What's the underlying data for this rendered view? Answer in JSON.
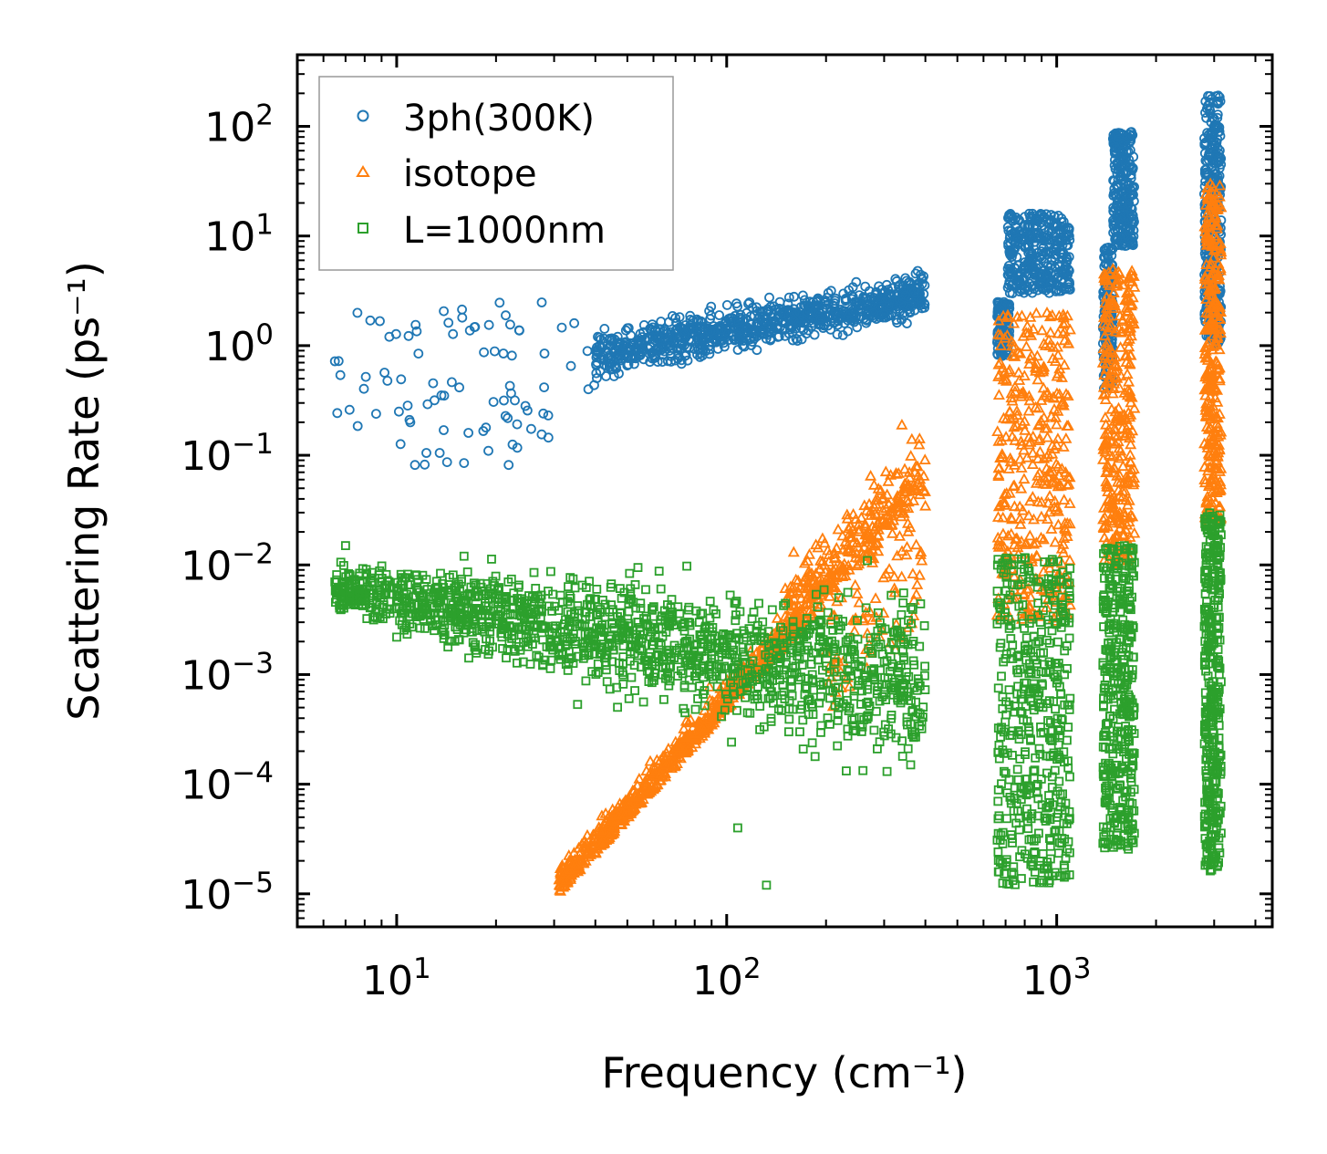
{
  "chart_data": {
    "type": "scatter",
    "xscale": "log",
    "yscale": "log",
    "xlim": [
      5,
      4500
    ],
    "ylim": [
      5e-06,
      450
    ],
    "xlabel": "Frequency (cm⁻¹)",
    "ylabel": "Scattering Rate (ps⁻¹)",
    "x_ticks": [
      {
        "base": "10",
        "exp": "1",
        "value": 10
      },
      {
        "base": "10",
        "exp": "2",
        "value": 100
      },
      {
        "base": "10",
        "exp": "3",
        "value": 1000
      }
    ],
    "y_ticks": [
      {
        "base": "10",
        "exp": "2",
        "value": 100
      },
      {
        "base": "10",
        "exp": "1",
        "value": 10
      },
      {
        "base": "10",
        "exp": "0",
        "value": 1
      },
      {
        "base": "10",
        "exp": "−1",
        "value": 0.1
      },
      {
        "base": "10",
        "exp": "−2",
        "value": 0.01
      },
      {
        "base": "10",
        "exp": "−3",
        "value": 0.001
      },
      {
        "base": "10",
        "exp": "−4",
        "value": 0.0001
      },
      {
        "base": "10",
        "exp": "−5",
        "value": 1e-05
      }
    ],
    "legend_position": "top-left",
    "series": [
      {
        "name": "3ph(300K)",
        "marker": "circle",
        "color": "#1f77b4",
        "description": "3-phonon scattering; trend rises from ~0.1-1 at low frequency to ~3-4 near 400, clusters near 700-1100 (1-15), 1400-1700 (0.3-90), 2800-3200 (0.3-200)",
        "bands": [
          {
            "x": [
              6.5,
              40
            ],
            "y": [
              0.08,
              2.5
            ],
            "count": 80,
            "trend": "flat"
          },
          {
            "x": [
              40,
              400
            ],
            "y_center_start": 0.8,
            "y_center_end": 3.0,
            "spread": 2.2,
            "count": 900
          },
          {
            "x": [
              660,
              720
            ],
            "y": [
              0.8,
              2.5
            ],
            "count": 120
          },
          {
            "x": [
              710,
              1100
            ],
            "y": [
              3,
              16
            ],
            "count": 350
          },
          {
            "x": [
              1380,
              1480
            ],
            "y": [
              0.4,
              8
            ],
            "count": 150
          },
          {
            "x": [
              1480,
              1720
            ],
            "y": [
              8,
              90
            ],
            "count": 250
          },
          {
            "x": [
              2800,
              3150
            ],
            "y": [
              1,
              200
            ],
            "count": 350
          }
        ],
        "sparse_points": [
          [
            6.5,
            0.72
          ],
          [
            7.2,
            0.26
          ],
          [
            11.5,
            1.35
          ],
          [
            11.0,
            0.2
          ],
          [
            12.3,
            0.105
          ],
          [
            13.5,
            0.105
          ],
          [
            16,
            0.085
          ],
          [
            15.8,
            1.8
          ],
          [
            16.5,
            0.16
          ]
        ]
      },
      {
        "name": "isotope",
        "marker": "triangle",
        "color": "#ff7f0e",
        "description": "isotope scattering; rises steeply from 1e-5 at 30 cm-1 to ~1e-3 near 100, ~1e-2 near 250, up to 0.1 near 350; clusters at 700-1100 (0.003-2), 1400-1700 (0.01-5), 2800-3200 (0.02-30)",
        "bands": [
          {
            "x": [
              31,
              400
            ],
            "law": "power",
            "y_at_31": 1e-05,
            "slope": 3.3,
            "spread": 2.5,
            "count": 1100
          },
          {
            "x": [
              660,
              1100
            ],
            "y": [
              0.003,
              2
            ],
            "count": 380
          },
          {
            "x": [
              1380,
              1720
            ],
            "y": [
              0.01,
              5
            ],
            "count": 320
          },
          {
            "x": [
              2800,
              3150
            ],
            "y": [
              0.02,
              30
            ],
            "count": 320
          }
        ]
      },
      {
        "name": "L=1000nm",
        "marker": "square",
        "color": "#2ca02c",
        "description": "boundary scattering with L=1000nm; ~5e-3 at low frequency, spreading down to 1e-4..1e-5 toward 400; clusters at 700-1100, 1400-1700, 2800-3200 spanning 1e-5..1e-2",
        "bands": [
          {
            "x": [
              6.5,
              400
            ],
            "y_center_start": 0.006,
            "y_center_end": 0.0008,
            "spread": 4,
            "count": 1500
          },
          {
            "x": [
              660,
              1100
            ],
            "y": [
              1.2e-05,
              0.012
            ],
            "count": 450
          },
          {
            "x": [
              1380,
              1720
            ],
            "y": [
              2.5e-05,
              0.015
            ],
            "count": 380
          },
          {
            "x": [
              2800,
              3150
            ],
            "y": [
              1.6e-05,
              0.03
            ],
            "count": 380
          }
        ],
        "sparse_points": [
          [
            6.5,
            0.007
          ],
          [
            7.0,
            0.015
          ],
          [
            10.5,
            0.0055
          ],
          [
            11.0,
            0.0042
          ],
          [
            11.5,
            0.008
          ],
          [
            12.0,
            0.0045
          ],
          [
            13.5,
            0.005
          ],
          [
            16,
            0.012
          ],
          [
            25,
            0.0018
          ],
          [
            132,
            1.2e-05
          ],
          [
            108,
            4e-05
          ]
        ]
      }
    ]
  }
}
